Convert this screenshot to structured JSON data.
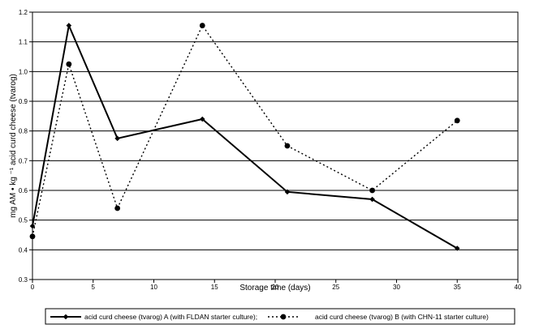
{
  "chart_data": {
    "type": "line",
    "title": "",
    "xlabel": "Storage time (days)",
    "ylabel": "mg AM • kg ⁻¹ acid curd cheese (tvarog)",
    "xlim": [
      0,
      40
    ],
    "ylim": [
      0.3,
      1.2
    ],
    "xticks": [
      "0",
      "5",
      "10",
      "15",
      "20",
      "25",
      "30",
      "35",
      "40"
    ],
    "yticks": [
      "0.3",
      "0.4",
      "0.5",
      "0.6",
      "0.7",
      "0.8",
      "0.9",
      "1.0",
      "1.1",
      "1.2"
    ],
    "grid": "horizontal",
    "legend_position": "bottom",
    "series": [
      {
        "name": "acid curd cheese (tvarog) A (with FLDAN starter culture);",
        "style": "solid",
        "marker": "diamond",
        "color": "#000000",
        "x": [
          0,
          3,
          7,
          14,
          21,
          28,
          35
        ],
        "y": [
          0.48,
          1.155,
          0.775,
          0.84,
          0.595,
          0.57,
          0.405
        ]
      },
      {
        "name": "acid curd cheese (tvarog) B (with CHN-11 starter culture)",
        "style": "dotted",
        "marker": "circle",
        "color": "#000000",
        "x": [
          0,
          3,
          7,
          14,
          21,
          28,
          35
        ],
        "y": [
          0.445,
          1.025,
          0.54,
          1.155,
          0.75,
          0.6,
          0.835
        ]
      }
    ]
  }
}
